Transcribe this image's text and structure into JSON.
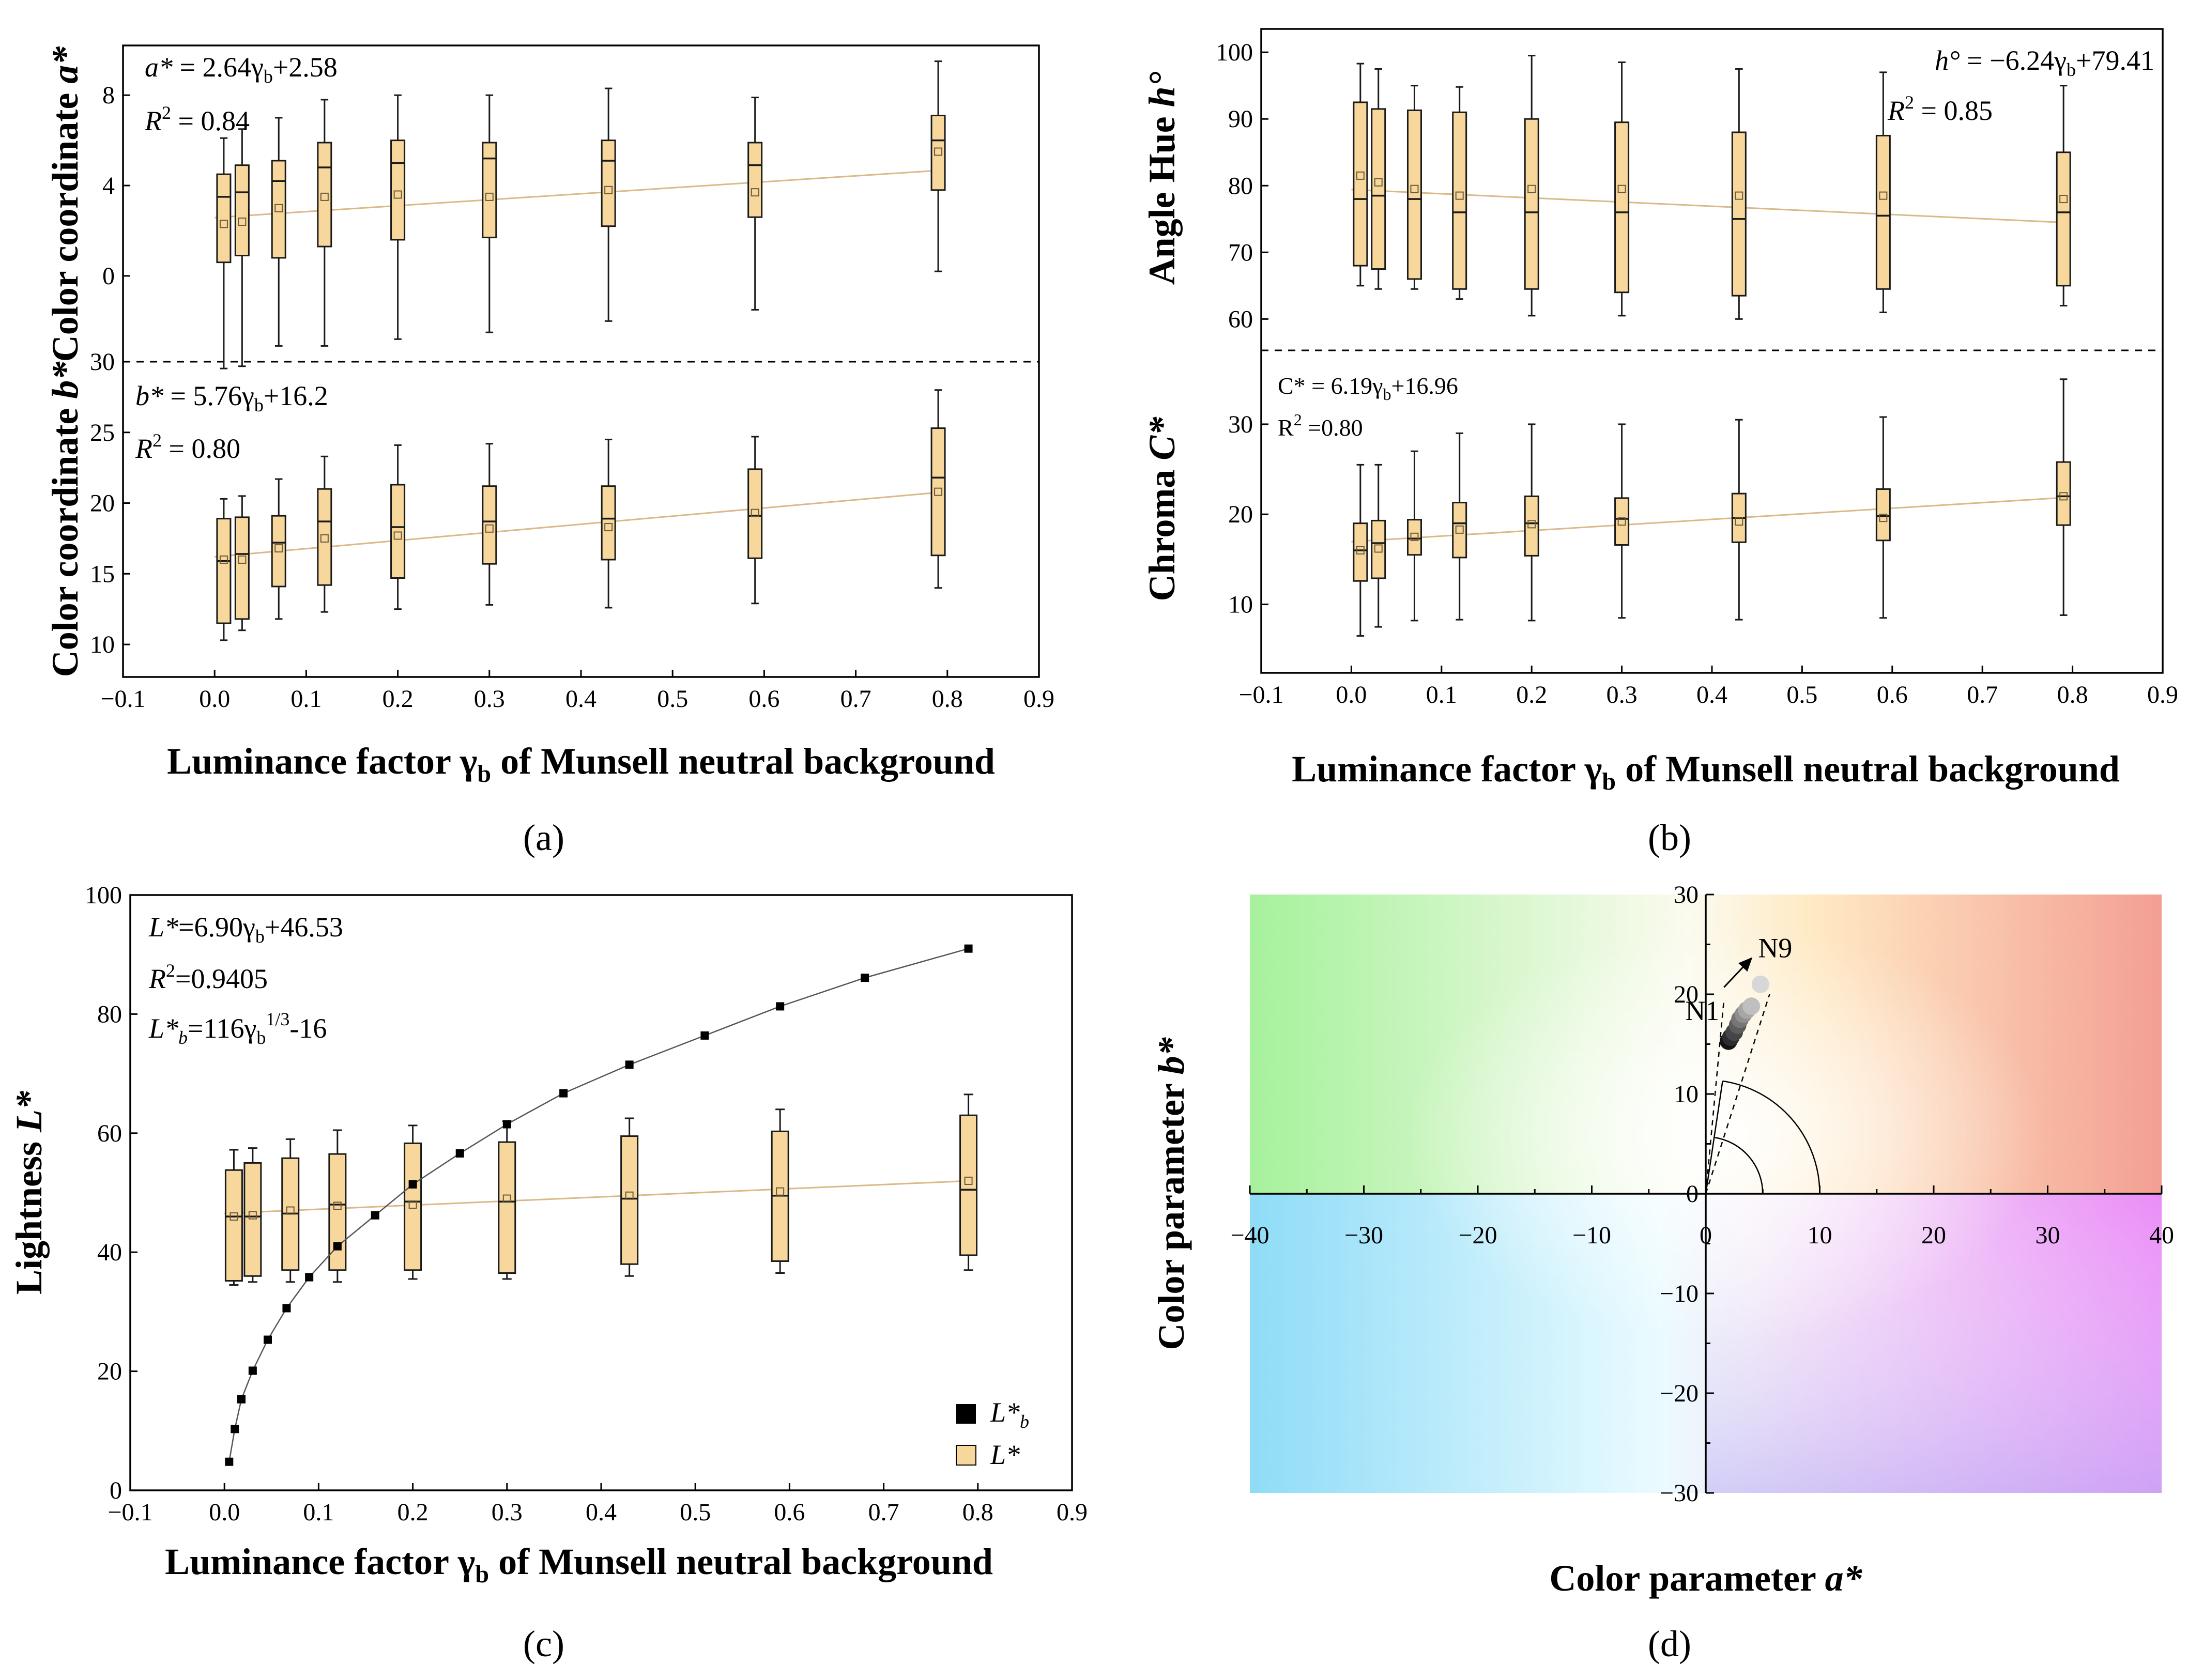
{
  "figure": {
    "title": ""
  },
  "colors": {
    "box_fill": "#f7d79b",
    "box_stroke": "#1a1a1a",
    "fit_line": "#d9b987",
    "lb_marker": "#000000"
  },
  "panels": {
    "a": {
      "label": "(a)",
      "xlabel_pre": "Luminance factor ",
      "xlabel_sym": "γ",
      "xlabel_sub": "b",
      "xlabel_post": " of Munsell neutral background",
      "top_ylabel_pre": "Color coordinate ",
      "top_ylabel_var": "a*",
      "bottom_ylabel_pre": "Color coordinate ",
      "bottom_ylabel_var": "b*",
      "top_eq_var": "a*",
      "top_eq_rest": " = 2.64γ",
      "top_eq_sub": "b",
      "top_eq_end": "+2.58",
      "top_r2": " = 0.84",
      "bottom_eq_var": "b*",
      "bottom_eq_rest": " = 5.76γ",
      "bottom_eq_sub": "b",
      "bottom_eq_end": "+16.2",
      "bottom_r2": " = 0.80"
    },
    "b": {
      "label": "(b)",
      "xlabel_pre": "Luminance factor ",
      "xlabel_sym": "γ",
      "xlabel_sub": "b",
      "xlabel_post": " of Munsell neutral background",
      "top_ylabel_pre": "Angle Hue ",
      "top_ylabel_var": "h°",
      "bottom_ylabel_pre": "Chroma ",
      "bottom_ylabel_var": "C*",
      "top_eq_var": "h°",
      "top_eq_rest": " = −6.24γ",
      "top_eq_sub": "b",
      "top_eq_end": "+79.41",
      "top_r2": " = 0.85",
      "bottom_eq_text": "C* = 6.19γ",
      "bottom_eq_sub": "b",
      "bottom_eq_end": "+16.96",
      "bottom_r2": " =0.80"
    },
    "c": {
      "label": "(c)",
      "xlabel_pre": "Luminance factor ",
      "xlabel_sym": "γ",
      "xlabel_sub": "b",
      "xlabel_post": " of Munsell neutral background",
      "ylabel_pre": "Lightness ",
      "ylabel_var": "L*",
      "eq1_var": "L*",
      "eq1_rest": "=6.90γ",
      "eq1_sub": "b",
      "eq1_end": "+46.53",
      "eq2_end": "=0.9405",
      "eq3_var": "L*",
      "eq3_sub_var": "b",
      "eq3_rest": "=116γ",
      "eq3_sub": "b",
      "eq3_sup": "1/3",
      "eq3_end": "-16",
      "legend_lb_var": "L*",
      "legend_lb_sub": "b",
      "legend_l": "L*"
    },
    "d": {
      "label": "(d)",
      "xlabel_pre": "Color parameter ",
      "xlabel_var": "a*",
      "ylabel_pre": "Color parameter ",
      "ylabel_var": "b*",
      "n1": "N1",
      "n9": "N9"
    }
  },
  "chart_data": [
    {
      "panel": "a",
      "type": "box",
      "subplot": "top",
      "x": [
        0.01,
        0.03,
        0.07,
        0.12,
        0.2,
        0.3,
        0.43,
        0.59,
        0.79
      ],
      "xlim": [
        -0.1,
        0.9
      ],
      "xticks": [
        -0.1,
        0.0,
        0.1,
        0.2,
        0.3,
        0.4,
        0.5,
        0.6,
        0.7,
        0.8,
        0.9
      ],
      "ylim": [
        -3.8,
        10.2
      ],
      "yticks": [
        0,
        4,
        8
      ],
      "series": [
        {
          "name": "a*",
          "box": [
            [
              -4.1,
              0.6,
              3.5,
              4.5,
              6.1
            ],
            [
              -4.0,
              0.9,
              3.7,
              4.9,
              6.5
            ],
            [
              -3.1,
              0.8,
              4.2,
              5.1,
              7.0
            ],
            [
              -3.1,
              1.3,
              4.8,
              5.9,
              7.8
            ],
            [
              -2.8,
              1.6,
              5.0,
              6.0,
              8.0
            ],
            [
              -2.5,
              1.7,
              5.2,
              5.9,
              8.0
            ],
            [
              -2.0,
              2.2,
              5.1,
              6.0,
              8.3
            ],
            [
              -1.5,
              2.6,
              4.9,
              5.9,
              7.9
            ],
            [
              0.2,
              3.8,
              6.0,
              7.1,
              9.5
            ]
          ],
          "mean": [
            2.3,
            2.4,
            3.0,
            3.5,
            3.6,
            3.5,
            3.8,
            3.7,
            5.5
          ]
        }
      ],
      "fit": {
        "slope": 2.64,
        "intercept": 2.58,
        "r2": 0.84
      }
    },
    {
      "panel": "a",
      "type": "box",
      "subplot": "bottom",
      "x": [
        0.01,
        0.03,
        0.07,
        0.12,
        0.2,
        0.3,
        0.43,
        0.59,
        0.79
      ],
      "xlim": [
        -0.1,
        0.9
      ],
      "ylim": [
        7.7,
        30
      ],
      "yticks": [
        10,
        15,
        20,
        25,
        30
      ],
      "series": [
        {
          "name": "b*",
          "box": [
            [
              10.3,
              11.5,
              15.9,
              18.9,
              20.3
            ],
            [
              11.0,
              11.8,
              16.4,
              19.0,
              20.5
            ],
            [
              11.8,
              14.1,
              17.2,
              19.1,
              21.7
            ],
            [
              12.3,
              14.2,
              18.7,
              21.0,
              23.3
            ],
            [
              12.5,
              14.7,
              18.3,
              21.3,
              24.1
            ],
            [
              12.8,
              15.7,
              18.7,
              21.2,
              24.2
            ],
            [
              12.6,
              16.0,
              18.9,
              21.2,
              24.5
            ],
            [
              12.9,
              16.1,
              19.1,
              22.4,
              24.7
            ],
            [
              14.0,
              16.3,
              21.8,
              25.3,
              28.0
            ]
          ],
          "mean": [
            16.0,
            16.0,
            16.8,
            17.5,
            17.7,
            18.2,
            18.3,
            19.3,
            20.8
          ]
        }
      ],
      "fit": {
        "slope": 5.76,
        "intercept": 16.2,
        "r2": 0.8
      }
    },
    {
      "panel": "b",
      "type": "box",
      "subplot": "top",
      "x": [
        0.01,
        0.03,
        0.07,
        0.12,
        0.2,
        0.3,
        0.43,
        0.59,
        0.79
      ],
      "xlim": [
        -0.1,
        0.9
      ],
      "ylim": [
        55.3,
        103.5
      ],
      "yticks": [
        60,
        70,
        80,
        90,
        100
      ],
      "series": [
        {
          "name": "h°",
          "box": [
            [
              65.0,
              68.0,
              78.0,
              92.5,
              98.3
            ],
            [
              64.5,
              67.5,
              78.5,
              91.5,
              97.5
            ],
            [
              64.5,
              66.0,
              78.0,
              91.3,
              95.0
            ],
            [
              63.0,
              64.5,
              76.0,
              91.0,
              94.8
            ],
            [
              60.5,
              64.5,
              76.0,
              90.0,
              99.5
            ],
            [
              60.5,
              64.0,
              76.0,
              89.5,
              98.5
            ],
            [
              60.0,
              63.5,
              75.0,
              88.0,
              97.5
            ],
            [
              61.0,
              64.5,
              75.5,
              87.5,
              97.0
            ],
            [
              62.0,
              65.0,
              76.0,
              85.0,
              95.0
            ]
          ],
          "mean": [
            81.5,
            80.5,
            79.5,
            78.5,
            79.5,
            79.5,
            78.5,
            78.5,
            78.0
          ]
        }
      ],
      "fit": {
        "slope": -6.24,
        "intercept": 79.41,
        "r2": 0.85
      }
    },
    {
      "panel": "b",
      "type": "box",
      "subplot": "bottom",
      "x": [
        0.01,
        0.03,
        0.07,
        0.12,
        0.2,
        0.3,
        0.43,
        0.59,
        0.79
      ],
      "xlim": [
        -0.1,
        0.9
      ],
      "ylim": [
        2.4,
        38.2
      ],
      "yticks": [
        10,
        20,
        30
      ],
      "series": [
        {
          "name": "C*",
          "box": [
            [
              6.5,
              12.6,
              16.0,
              19.0,
              25.5
            ],
            [
              7.5,
              12.9,
              16.8,
              19.3,
              25.5
            ],
            [
              8.2,
              15.5,
              17.3,
              19.4,
              27.0
            ],
            [
              8.3,
              15.2,
              19.0,
              21.3,
              29.0
            ],
            [
              8.2,
              15.4,
              19.0,
              22.0,
              30.0
            ],
            [
              8.5,
              16.6,
              19.5,
              21.8,
              30.0
            ],
            [
              8.3,
              16.9,
              19.6,
              22.3,
              30.5
            ],
            [
              8.5,
              17.1,
              19.8,
              22.8,
              30.8
            ],
            [
              8.8,
              18.8,
              22.0,
              25.8,
              35.0
            ]
          ],
          "mean": [
            16.0,
            16.2,
            17.5,
            18.3,
            18.9,
            19.2,
            19.2,
            19.6,
            22.0
          ]
        }
      ],
      "fit": {
        "slope": 6.19,
        "intercept": 16.96,
        "r2": 0.8
      }
    },
    {
      "panel": "c",
      "type": "box+line",
      "x": [
        0.01,
        0.03,
        0.07,
        0.12,
        0.2,
        0.3,
        0.43,
        0.59,
        0.79
      ],
      "xlim": [
        -0.1,
        0.9
      ],
      "ylim": [
        0,
        100
      ],
      "yticks": [
        0,
        20,
        40,
        60,
        80,
        100
      ],
      "series": [
        {
          "name": "L*",
          "box": [
            [
              34.5,
              35.2,
              46.0,
              53.8,
              57.2
            ],
            [
              35.0,
              36.0,
              46.0,
              55.0,
              57.5
            ],
            [
              35.0,
              37.0,
              46.5,
              55.8,
              59.0
            ],
            [
              35.0,
              37.0,
              48.0,
              56.5,
              60.5
            ],
            [
              35.5,
              37.0,
              48.5,
              58.3,
              61.3
            ],
            [
              35.5,
              36.5,
              48.5,
              58.5,
              62.0
            ],
            [
              36.0,
              38.0,
              49.0,
              59.5,
              62.5
            ],
            [
              36.5,
              38.5,
              49.5,
              60.3,
              64.0
            ],
            [
              37.0,
              39.5,
              50.5,
              63.0,
              66.5
            ]
          ],
          "mean": [
            46.0,
            46.2,
            47.0,
            47.8,
            48.0,
            49.0,
            49.5,
            50.2,
            52.0
          ]
        },
        {
          "name": "L*b",
          "x": [
            0.005,
            0.011,
            0.018,
            0.03,
            0.046,
            0.066,
            0.09,
            0.12,
            0.16,
            0.2,
            0.25,
            0.3,
            0.36,
            0.43,
            0.51,
            0.59,
            0.68,
            0.79
          ],
          "y": [
            4.8,
            10.3,
            15.3,
            20.1,
            25.3,
            30.6,
            35.8,
            41.0,
            46.2,
            51.4,
            56.6,
            61.5,
            66.7,
            71.5,
            76.4,
            81.3,
            86.1,
            91.0
          ]
        }
      ],
      "fit": {
        "slope": 6.9,
        "intercept": 46.53,
        "r2": 0.9405
      },
      "legend": [
        "L*b",
        "L*"
      ]
    },
    {
      "panel": "d",
      "type": "scatter",
      "xlim": [
        -40,
        40
      ],
      "ylim": [
        -30,
        30
      ],
      "xticks": [
        -40,
        -30,
        -20,
        -10,
        0,
        10,
        20,
        30,
        40
      ],
      "yticks": [
        -30,
        -20,
        -10,
        0,
        10,
        20,
        30
      ],
      "series": [
        {
          "name": "N1–N9",
          "x": [
            2.0,
            2.2,
            2.5,
            2.8,
            3.0,
            3.3,
            3.6,
            4.0,
            4.8
          ],
          "y": [
            15.3,
            15.7,
            16.2,
            16.9,
            17.5,
            18.0,
            18.4,
            18.8,
            21.0
          ]
        }
      ],
      "labels": [
        "N1",
        "N9"
      ]
    }
  ]
}
